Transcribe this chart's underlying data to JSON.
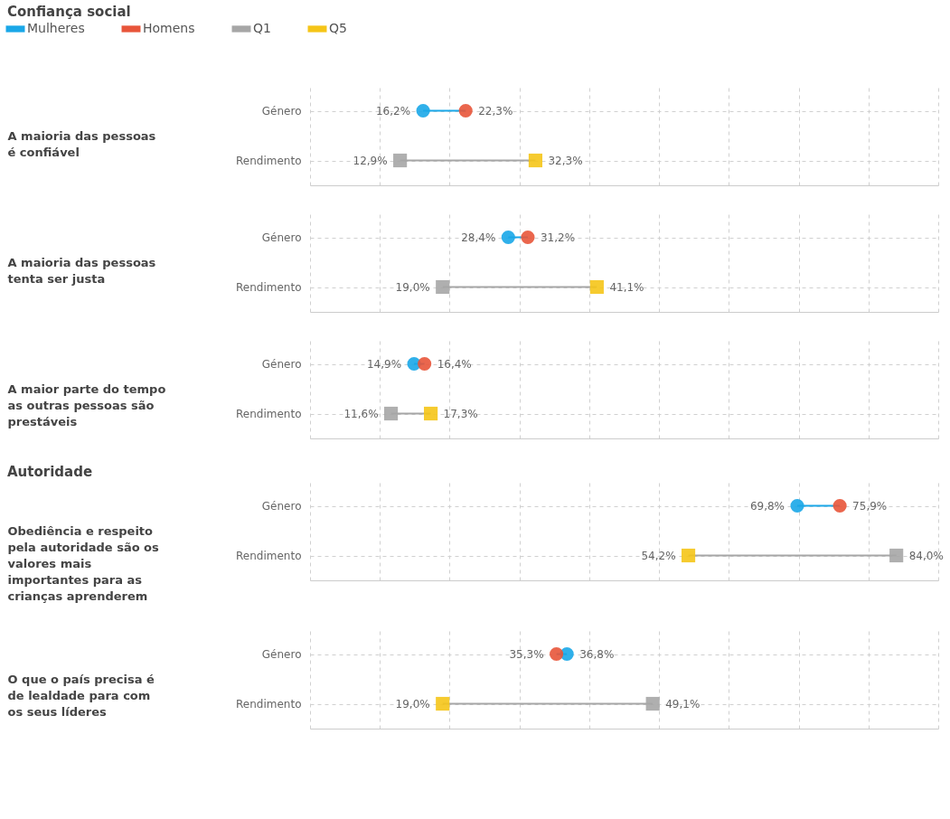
{
  "chart_data": [
    {
      "type": "other",
      "title": "Confiança social",
      "ylabel": "A maioria das pessoas é confiável",
      "categories": [
        "Género",
        "Rendimento"
      ],
      "legend": "top left",
      "series": [
        {
          "name": "Mulheres",
          "color": "#1aa7e8",
          "marker": "circle",
          "values": [
            16.2,
            null
          ],
          "value_labels": [
            "16,2%",
            null
          ]
        },
        {
          "name": "Homens",
          "color": "#e8553a",
          "marker": "circle",
          "values": [
            22.3,
            null
          ],
          "value_labels": [
            "22,3%",
            null
          ]
        },
        {
          "name": "Q1",
          "color": "#a6a6a6",
          "marker": "square",
          "values": [
            null,
            12.9
          ],
          "value_labels": [
            null,
            "12,9%"
          ]
        },
        {
          "name": "Q5",
          "color": "#f5c518",
          "marker": "square",
          "values": [
            null,
            32.3
          ],
          "value_labels": [
            null,
            "32,3%"
          ]
        }
      ]
    },
    {
      "type": "other",
      "ylabel": "A maioria das pessoas tenta ser justa",
      "categories": [
        "Género",
        "Rendimento"
      ],
      "series": [
        {
          "color": "#1aa7e8",
          "marker": "circle",
          "values": [
            28.4,
            null
          ],
          "value_labels": [
            "28,4%",
            null
          ]
        },
        {
          "color": "#e8553a",
          "marker": "circle",
          "values": [
            31.2,
            null
          ],
          "value_labels": [
            "31,2%",
            null
          ]
        },
        {
          "color": "#a6a6a6",
          "marker": "square",
          "values": [
            null,
            19.0
          ],
          "value_labels": [
            null,
            "19,0%"
          ]
        },
        {
          "color": "#f5c518",
          "marker": "square",
          "values": [
            null,
            41.1
          ],
          "value_labels": [
            null,
            "41,1%"
          ]
        }
      ]
    },
    {
      "type": "other",
      "ylabel": "A maior parte do tempo as outras pessoas são prestáveis",
      "categories": [
        "Género",
        "Rendimento"
      ],
      "series": [
        {
          "color": "#1aa7e8",
          "marker": "circle",
          "values": [
            14.9,
            null
          ],
          "value_labels": [
            "14,9%",
            null
          ]
        },
        {
          "color": "#e8553a",
          "marker": "circle",
          "values": [
            16.4,
            null
          ],
          "value_labels": [
            "16,4%",
            null
          ]
        },
        {
          "color": "#a6a6a6",
          "marker": "square",
          "values": [
            null,
            11.6
          ],
          "value_labels": [
            null,
            "11,6%"
          ]
        },
        {
          "color": "#f5c518",
          "marker": "square",
          "values": [
            null,
            17.3
          ],
          "value_labels": [
            null,
            "17,3%"
          ]
        }
      ]
    },
    {
      "type": "other",
      "title": "Autoridade",
      "ylabel": "Obediência e respeito pela autoridade são os valores mais importantes para as crianças aprenderem",
      "categories": [
        "Género",
        "Rendimento"
      ],
      "series": [
        {
          "color": "#1aa7e8",
          "marker": "circle",
          "values": [
            69.8,
            null
          ],
          "value_labels": [
            "69,8%",
            null
          ]
        },
        {
          "color": "#e8553a",
          "marker": "circle",
          "values": [
            75.9,
            null
          ],
          "value_labels": [
            "75,9%",
            null
          ]
        },
        {
          "color": "#a6a6a6",
          "marker": "square",
          "values": [
            null,
            84.0
          ],
          "value_labels": [
            null,
            "84,0%"
          ]
        },
        {
          "color": "#f5c518",
          "marker": "square",
          "values": [
            null,
            54.2
          ],
          "value_labels": [
            null,
            "54,2%"
          ]
        }
      ]
    },
    {
      "type": "other",
      "ylabel": "O que o país precisa é de lealdade para com os seus líderes",
      "categories": [
        "Género",
        "Rendimento"
      ],
      "series": [
        {
          "color": "#1aa7e8",
          "marker": "circle",
          "values": [
            36.8,
            null
          ],
          "value_labels": [
            "36,8%",
            null
          ]
        },
        {
          "color": "#e8553a",
          "marker": "circle",
          "values": [
            35.3,
            null
          ],
          "value_labels": [
            "35,3%",
            null
          ]
        },
        {
          "color": "#a6a6a6",
          "marker": "square",
          "values": [
            null,
            49.1
          ],
          "value_labels": [
            null,
            "49,1%"
          ]
        },
        {
          "color": "#f5c518",
          "marker": "square",
          "values": [
            null,
            19.0
          ],
          "value_labels": [
            null,
            "19,0%"
          ]
        }
      ]
    }
  ]
}
